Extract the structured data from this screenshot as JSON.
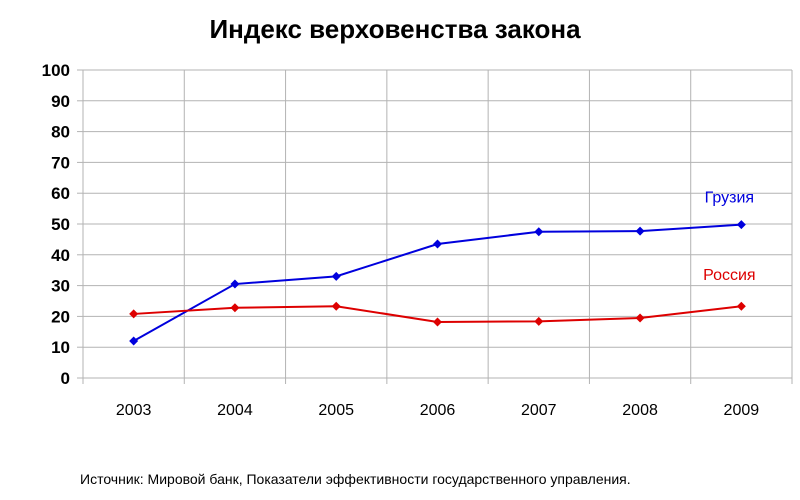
{
  "chart_data": {
    "type": "line",
    "title": "Индекс верховенства закона",
    "categories": [
      "2003",
      "2004",
      "2005",
      "2006",
      "2007",
      "2008",
      "2009"
    ],
    "ylim": [
      0,
      100
    ],
    "yticks": [
      0,
      10,
      20,
      30,
      40,
      50,
      60,
      70,
      80,
      90,
      100
    ],
    "grid": true,
    "series": [
      {
        "name": "Грузия",
        "color": "#0000dd",
        "values": [
          12,
          30.5,
          33,
          43.5,
          47.5,
          47.7,
          49.8
        ]
      },
      {
        "name": "Россия",
        "color": "#dd0000",
        "values": [
          20.8,
          22.8,
          23.3,
          18.2,
          18.4,
          19.5,
          23.3
        ]
      }
    ]
  },
  "footer": {
    "source": "Источник: Мировой банк, Показатели эффективности государственного управления."
  }
}
